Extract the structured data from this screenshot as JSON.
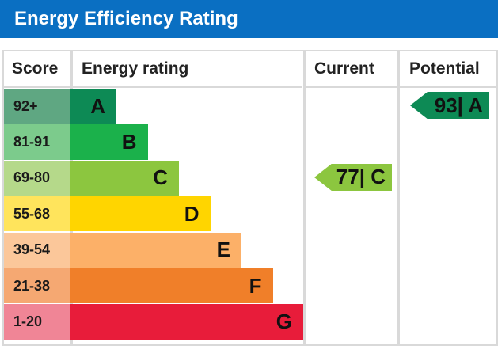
{
  "title": "Energy Efficiency Rating",
  "headers": {
    "score": "Score",
    "energy_rating": "Energy rating",
    "current": "Current",
    "potential": "Potential"
  },
  "chart_data": {
    "type": "bar",
    "title": "Energy Efficiency Rating",
    "categories": [
      "A",
      "B",
      "C",
      "D",
      "E",
      "F",
      "G"
    ],
    "bands": [
      {
        "range": "92+",
        "letter": "A",
        "color": "#0d8a55",
        "score_color": "#5fa782"
      },
      {
        "range": "81-91",
        "letter": "B",
        "color": "#1bb14b",
        "score_color": "#7ccb8c"
      },
      {
        "range": "69-80",
        "letter": "C",
        "color": "#8cc63f",
        "score_color": "#b5d98a"
      },
      {
        "range": "55-68",
        "letter": "D",
        "color": "#ffd500",
        "score_color": "#ffe45c"
      },
      {
        "range": "39-54",
        "letter": "E",
        "color": "#fcb068",
        "score_color": "#fbc79a"
      },
      {
        "range": "21-38",
        "letter": "F",
        "color": "#f07f29",
        "score_color": "#f5a872"
      },
      {
        "range": "1-20",
        "letter": "G",
        "color": "#e81c3a",
        "score_color": "#f08596"
      }
    ],
    "current": {
      "value": 77,
      "letter": "C",
      "label": "77| C",
      "color": "#8cc63f"
    },
    "potential": {
      "value": 93,
      "letter": "A",
      "label": "93| A",
      "color": "#0d8a55"
    }
  }
}
